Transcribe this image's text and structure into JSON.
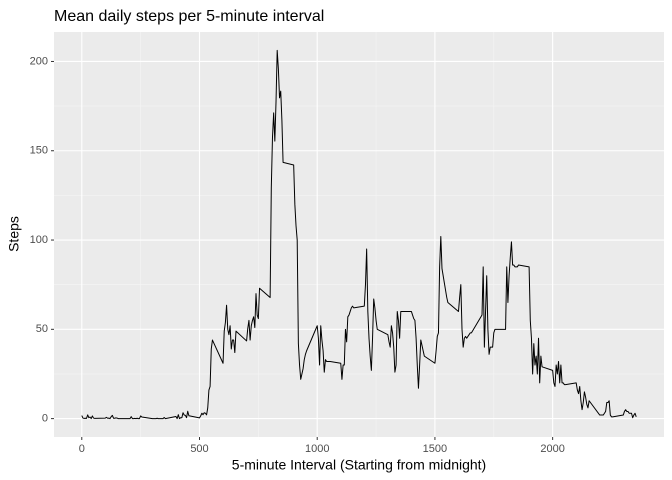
{
  "chart_data": {
    "type": "line",
    "title": "Mean daily steps per 5-minute interval",
    "xlabel": "5-minute Interval (Starting from midnight)",
    "ylabel": "Steps",
    "x": [
      0,
      5,
      10,
      15,
      20,
      25,
      30,
      35,
      40,
      45,
      50,
      55,
      100,
      105,
      110,
      115,
      120,
      125,
      130,
      135,
      140,
      145,
      150,
      155,
      200,
      205,
      210,
      215,
      220,
      225,
      230,
      235,
      240,
      245,
      250,
      255,
      300,
      305,
      310,
      315,
      320,
      325,
      330,
      335,
      340,
      345,
      350,
      355,
      400,
      405,
      410,
      415,
      420,
      425,
      430,
      435,
      440,
      445,
      450,
      455,
      500,
      505,
      510,
      515,
      520,
      525,
      530,
      535,
      540,
      545,
      550,
      555,
      600,
      605,
      610,
      615,
      620,
      625,
      630,
      635,
      640,
      645,
      650,
      655,
      700,
      705,
      710,
      715,
      720,
      725,
      730,
      735,
      740,
      745,
      750,
      755,
      800,
      805,
      810,
      815,
      820,
      825,
      830,
      835,
      840,
      845,
      850,
      855,
      900,
      905,
      910,
      915,
      920,
      925,
      930,
      935,
      940,
      945,
      950,
      955,
      1000,
      1005,
      1010,
      1015,
      1020,
      1025,
      1030,
      1035,
      1040,
      1045,
      1050,
      1055,
      1100,
      1105,
      1110,
      1115,
      1120,
      1125,
      1130,
      1135,
      1140,
      1145,
      1150,
      1155,
      1200,
      1205,
      1210,
      1215,
      1220,
      1225,
      1230,
      1235,
      1240,
      1245,
      1250,
      1255,
      1300,
      1305,
      1310,
      1315,
      1320,
      1325,
      1330,
      1335,
      1340,
      1345,
      1350,
      1355,
      1400,
      1405,
      1410,
      1415,
      1420,
      1425,
      1430,
      1435,
      1440,
      1445,
      1450,
      1455,
      1500,
      1505,
      1510,
      1515,
      1520,
      1525,
      1530,
      1535,
      1540,
      1545,
      1550,
      1555,
      1600,
      1605,
      1610,
      1615,
      1620,
      1625,
      1630,
      1635,
      1640,
      1645,
      1650,
      1655,
      1700,
      1705,
      1710,
      1715,
      1720,
      1725,
      1730,
      1735,
      1740,
      1745,
      1750,
      1755,
      1800,
      1805,
      1810,
      1815,
      1820,
      1825,
      1830,
      1835,
      1840,
      1845,
      1850,
      1855,
      1900,
      1905,
      1910,
      1915,
      1920,
      1925,
      1930,
      1935,
      1940,
      1945,
      1950,
      1955,
      2000,
      2005,
      2010,
      2015,
      2020,
      2025,
      2030,
      2035,
      2040,
      2045,
      2050,
      2055,
      2100,
      2105,
      2110,
      2115,
      2120,
      2125,
      2130,
      2135,
      2140,
      2145,
      2150,
      2155,
      2200,
      2205,
      2210,
      2215,
      2220,
      2225,
      2230,
      2235,
      2240,
      2245,
      2250,
      2255,
      2300,
      2305,
      2310,
      2315,
      2320,
      2325,
      2330,
      2335,
      2340,
      2345,
      2350,
      2355
    ],
    "values": [
      1.7,
      0.3,
      0.1,
      0.2,
      0.1,
      2.1,
      0.5,
      0.9,
      0,
      1.5,
      0.3,
      0.1,
      0.3,
      0.7,
      0.2,
      0.3,
      0,
      1.1,
      1.8,
      0.2,
      0.2,
      0.4,
      0.3,
      0,
      0,
      0,
      1.1,
      0,
      0,
      0.1,
      0,
      0.2,
      0,
      0,
      1.5,
      0.9,
      0,
      0,
      0,
      0,
      0.2,
      0,
      0,
      0,
      0,
      0,
      0.6,
      0,
      1.2,
      0,
      2.2,
      0,
      0.5,
      0.5,
      3.3,
      2,
      1.8,
      0.5,
      4.1,
      1.6,
      0.4,
      1.5,
      3,
      2.2,
      3.3,
      3,
      2.1,
      6,
      16,
      18,
      39,
      44,
      31,
      49,
      53.8,
      63.5,
      50,
      47,
      52,
      39,
      44,
      44,
      37,
      49,
      43.5,
      50.5,
      55,
      44,
      52,
      55,
      57,
      51,
      70,
      58,
      56,
      73,
      67.8,
      129.4,
      157.5,
      171.2,
      155.4,
      177.3,
      206.2,
      195.9,
      179.6,
      183.4,
      167,
      143.5,
      142,
      120,
      108,
      100,
      42,
      30,
      22,
      25,
      28,
      33,
      36,
      38,
      52,
      45,
      30,
      52,
      44,
      38,
      26,
      33,
      32,
      32,
      32,
      32,
      31,
      22,
      30,
      30,
      50,
      43,
      57,
      58,
      60,
      62,
      63,
      62,
      63,
      75,
      95,
      60,
      45,
      35,
      27,
      45,
      67,
      62,
      55,
      50,
      47,
      43,
      40,
      52,
      48,
      40,
      26,
      30,
      60,
      55,
      45,
      60,
      60,
      58,
      56,
      55,
      45,
      30,
      17,
      30,
      44,
      41,
      38,
      35,
      31,
      38,
      46,
      48,
      85,
      102,
      84,
      80,
      76,
      72,
      68,
      65,
      60,
      68,
      75,
      50,
      40,
      45,
      46,
      45,
      46,
      47,
      48,
      48,
      58,
      85,
      40,
      60,
      80,
      50,
      36,
      40,
      40,
      40,
      48,
      50,
      50,
      85,
      65,
      80,
      90,
      99,
      86,
      86,
      85,
      85,
      85,
      86,
      85,
      55,
      45,
      25,
      42,
      30,
      35,
      25,
      45,
      20,
      35,
      29,
      27,
      20,
      18,
      30,
      25,
      32,
      20,
      30,
      20,
      20,
      19,
      19,
      20,
      16,
      14,
      18,
      10,
      5,
      9,
      15,
      12,
      8,
      6,
      10,
      2,
      2,
      2,
      2,
      3,
      4,
      9,
      9,
      10,
      2,
      1,
      1,
      2,
      4,
      5,
      4,
      4,
      3,
      3,
      3,
      0.5,
      2,
      3,
      1
    ],
    "color": "#000000",
    "xlim": [
      -118,
      2473
    ],
    "ylim": [
      -10.3,
      216.5
    ],
    "xticks": [
      0,
      500,
      1000,
      1500,
      2000
    ],
    "yticks": [
      0,
      50,
      100,
      150,
      200
    ],
    "grid": true
  }
}
